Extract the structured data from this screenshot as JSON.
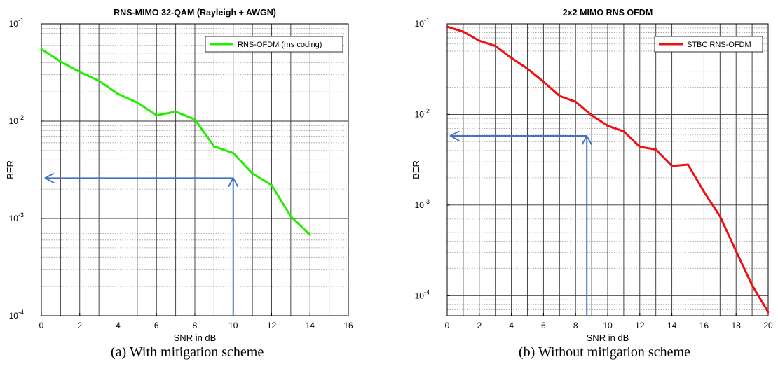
{
  "chart_data": [
    {
      "type": "line",
      "title": "RNS-MIMO 32-QAM (Rayleigh + AWGN)",
      "xlabel": "SNR in dB",
      "ylabel": "BER",
      "xlim": [
        0,
        16
      ],
      "ylim": [
        0.0001,
        0.1
      ],
      "yscale": "log",
      "xticks": [
        "0",
        "2",
        "4",
        "6",
        "8",
        "10",
        "12",
        "14",
        "16"
      ],
      "yticks": [
        {
          "base": "10",
          "exp": "-1"
        },
        {
          "base": "10",
          "exp": "-2"
        },
        {
          "base": "10",
          "exp": "-3"
        },
        {
          "base": "10",
          "exp": "-4"
        }
      ],
      "grid": true,
      "legend_position": "top-right",
      "series": [
        {
          "name": "RNS-OFDM (rns coding)",
          "color": "#22ee00",
          "x": [
            0,
            1,
            2,
            3,
            4,
            5,
            6,
            7,
            8,
            9,
            10,
            11,
            12,
            13,
            14
          ],
          "y": [
            0.055,
            0.041,
            0.032,
            0.026,
            0.019,
            0.0155,
            0.0115,
            0.0125,
            0.0104,
            0.0055,
            0.0047,
            0.0029,
            0.0022,
            0.00105,
            0.00068
          ]
        }
      ],
      "annotations": [
        {
          "type": "arrow",
          "color": "#4472c4",
          "from": [
            10,
            0.0001
          ],
          "to": [
            10,
            0.0026
          ]
        },
        {
          "type": "arrow",
          "color": "#4472c4",
          "from": [
            10,
            0.0026
          ],
          "to": [
            0.2,
            0.0026
          ]
        }
      ]
    },
    {
      "type": "line",
      "title": "2x2 MIMO RNS OFDM",
      "xlabel": "SNR in dB",
      "ylabel": "BER",
      "xlim": [
        0,
        20
      ],
      "ylim": [
        6e-05,
        0.1
      ],
      "yscale": "log",
      "xticks": [
        "0",
        "2",
        "4",
        "6",
        "8",
        "10",
        "12",
        "14",
        "16",
        "18",
        "20"
      ],
      "yticks": [
        {
          "base": "10",
          "exp": "-1"
        },
        {
          "base": "10",
          "exp": "-2"
        },
        {
          "base": "10",
          "exp": "-3"
        },
        {
          "base": "10",
          "exp": "-4"
        }
      ],
      "grid": true,
      "legend_position": "top-right",
      "series": [
        {
          "name": "STBC RNS-OFDM",
          "color": "#ee1111",
          "x": [
            0,
            1,
            2,
            3,
            4,
            5,
            6,
            7,
            8,
            9,
            10,
            11,
            12,
            13,
            14,
            15,
            16,
            17,
            18,
            19,
            20
          ],
          "y": [
            0.093,
            0.082,
            0.065,
            0.057,
            0.042,
            0.032,
            0.023,
            0.016,
            0.0138,
            0.0098,
            0.0075,
            0.0065,
            0.0044,
            0.0041,
            0.0027,
            0.0028,
            0.0014,
            0.00075,
            0.00031,
            0.00013,
            6.6e-05
          ]
        }
      ],
      "annotations": [
        {
          "type": "arrow",
          "color": "#4472c4",
          "from": [
            8.7,
            6e-05
          ],
          "to": [
            8.7,
            0.0058
          ]
        },
        {
          "type": "arrow",
          "color": "#4472c4",
          "from": [
            8.7,
            0.0058
          ],
          "to": [
            0.2,
            0.0058
          ]
        }
      ]
    }
  ],
  "captions": {
    "a": "(a) With mitigation scheme",
    "b": "(b) Without mitigation scheme"
  }
}
